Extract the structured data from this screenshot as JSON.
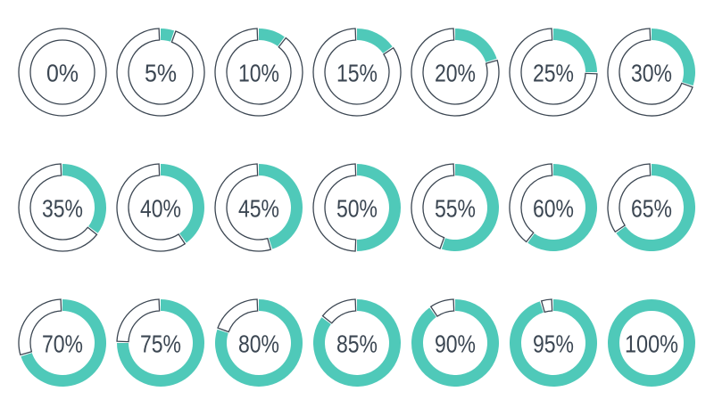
{
  "chart_data": {
    "type": "donut",
    "colors": {
      "filled": "#4fc9b9",
      "outline": "#3b4652",
      "text": "#3b4652"
    },
    "items": [
      {
        "label": "0%",
        "value": 0
      },
      {
        "label": "5%",
        "value": 5
      },
      {
        "label": "10%",
        "value": 10
      },
      {
        "label": "15%",
        "value": 15
      },
      {
        "label": "20%",
        "value": 20
      },
      {
        "label": "25%",
        "value": 25
      },
      {
        "label": "30%",
        "value": 30
      },
      {
        "label": "35%",
        "value": 35
      },
      {
        "label": "40%",
        "value": 40
      },
      {
        "label": "45%",
        "value": 45
      },
      {
        "label": "50%",
        "value": 50
      },
      {
        "label": "55%",
        "value": 55
      },
      {
        "label": "60%",
        "value": 60
      },
      {
        "label": "65%",
        "value": 65
      },
      {
        "label": "70%",
        "value": 70
      },
      {
        "label": "75%",
        "value": 75
      },
      {
        "label": "80%",
        "value": 80
      },
      {
        "label": "85%",
        "value": 85
      },
      {
        "label": "90%",
        "value": 90
      },
      {
        "label": "95%",
        "value": 95
      },
      {
        "label": "100%",
        "value": 100
      }
    ]
  }
}
